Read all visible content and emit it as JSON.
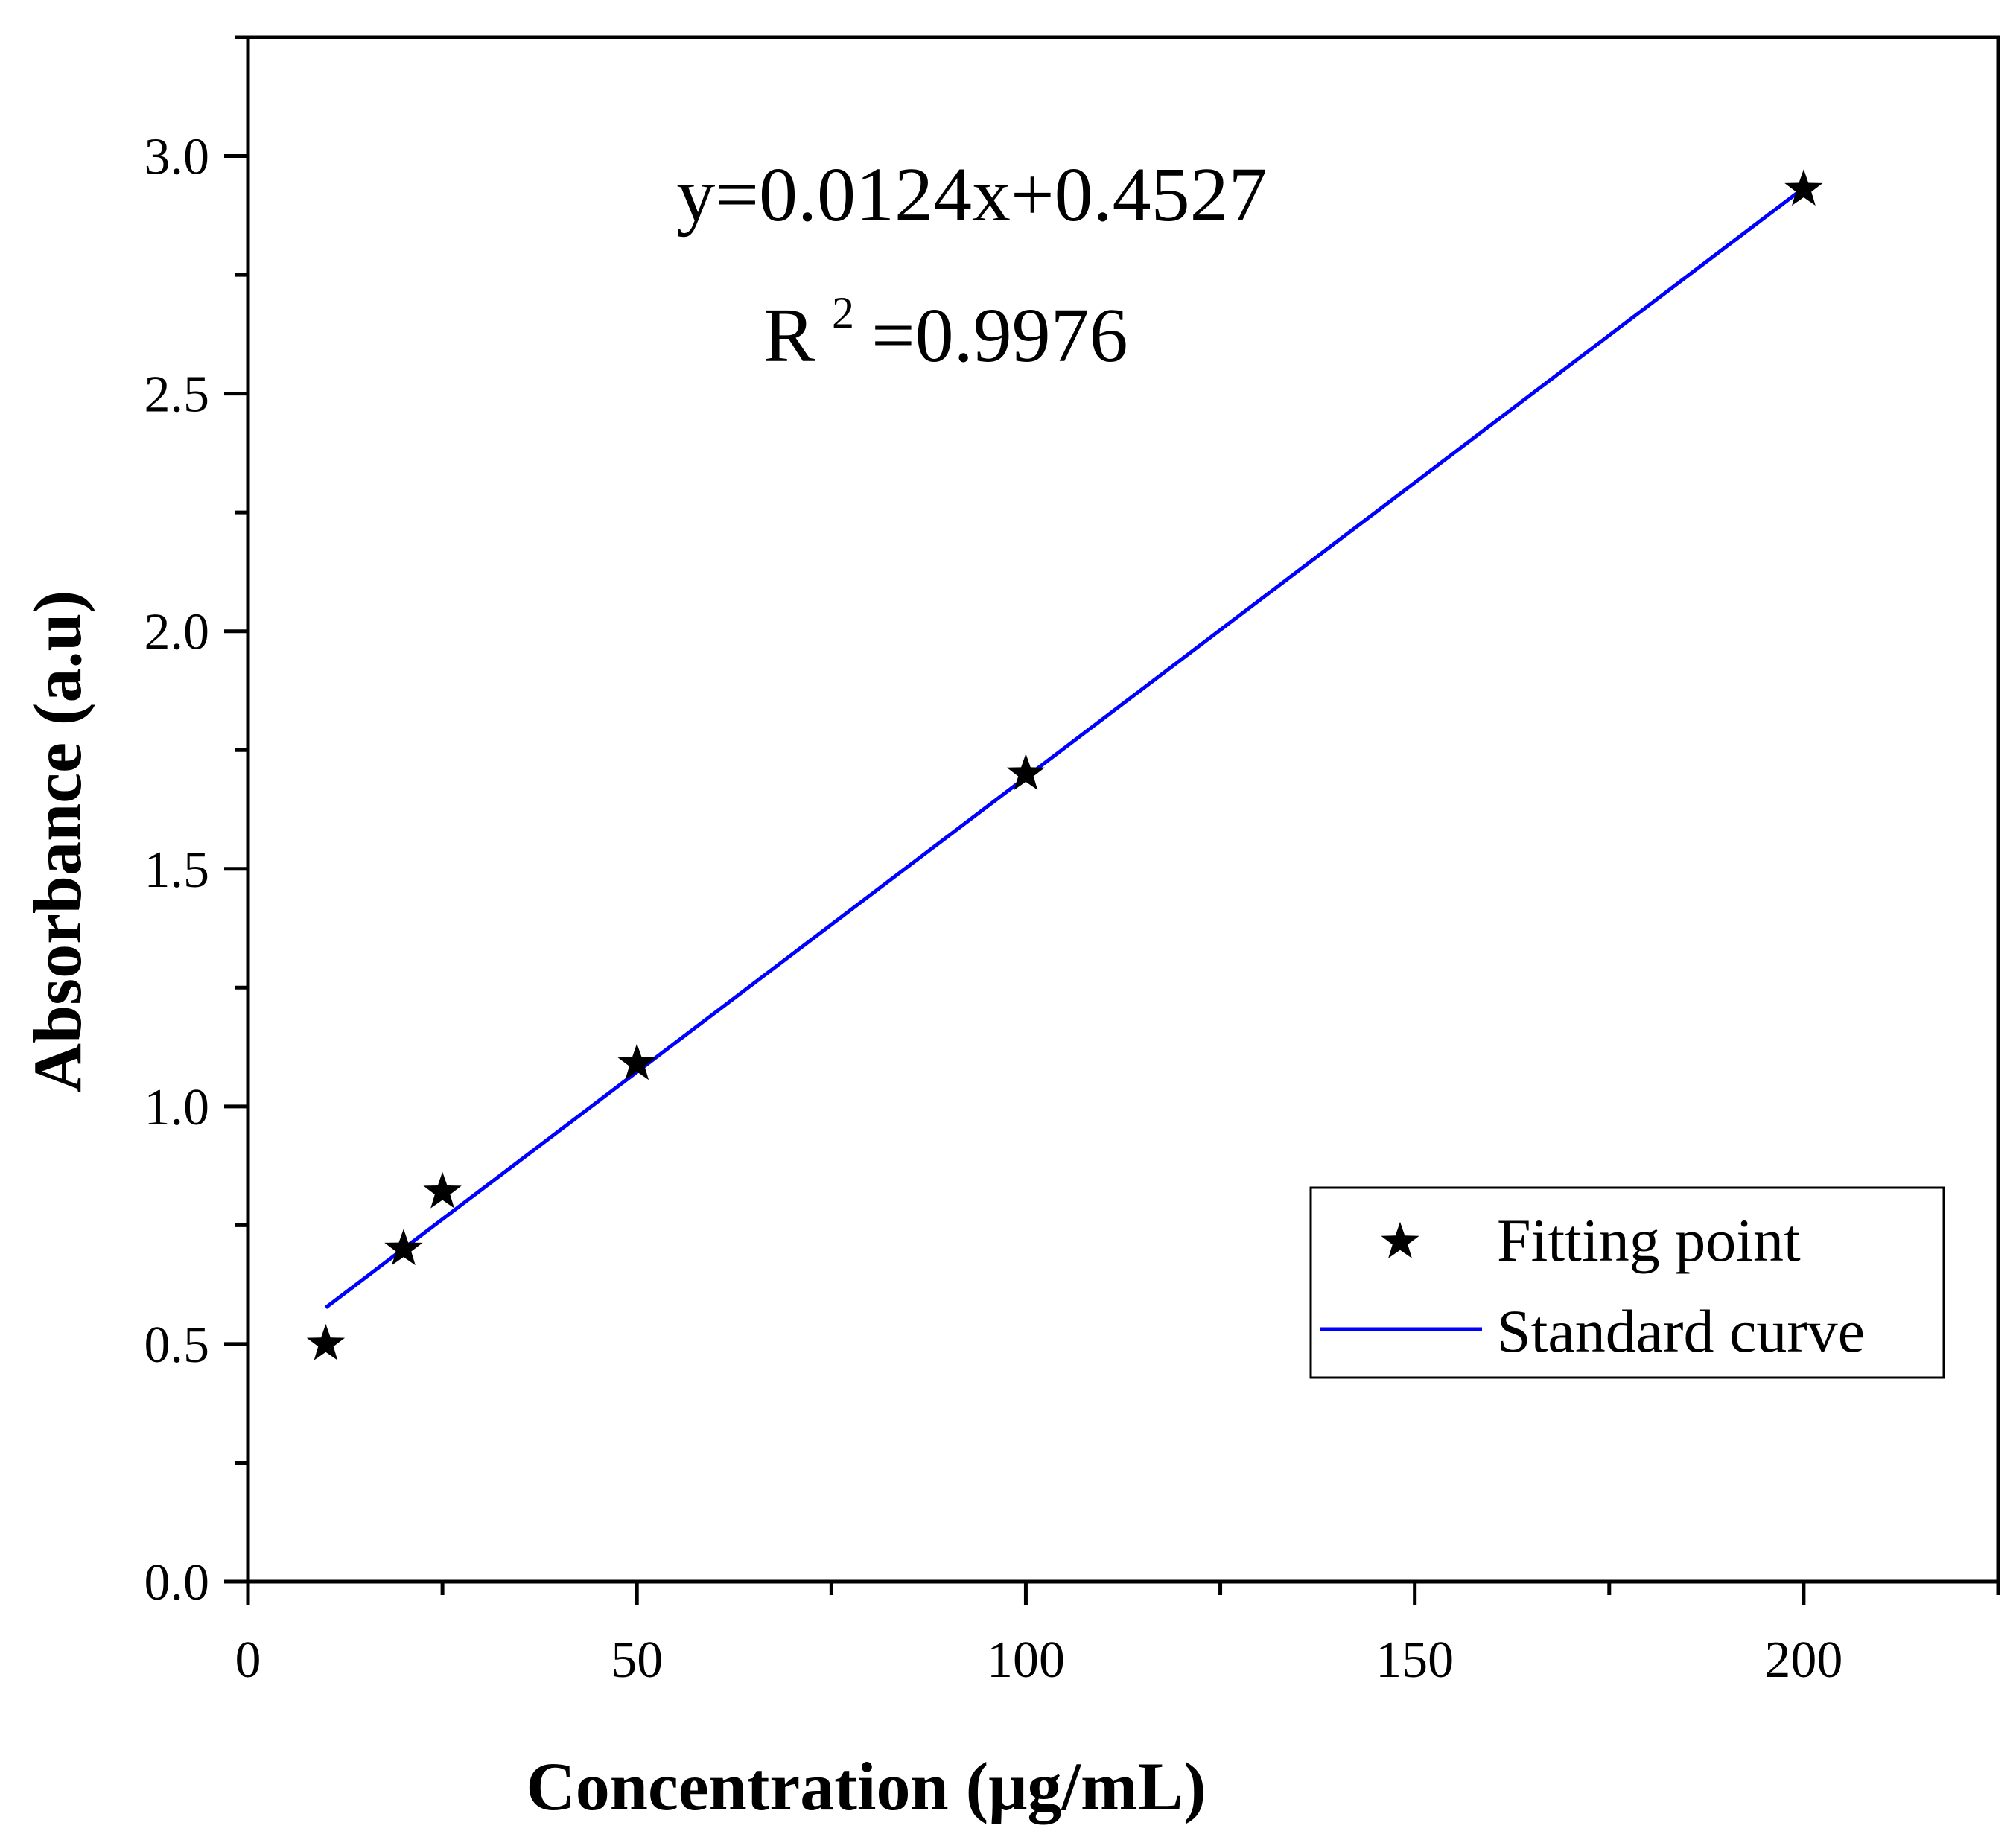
{
  "chart_data": {
    "type": "scatter",
    "title": "",
    "xlabel": "Concentration (μg/mL)",
    "ylabel": "Absorbance (a.u)",
    "xlim": [
      0,
      225
    ],
    "ylim": [
      0,
      3.25
    ],
    "x_ticks": [
      0,
      50,
      100,
      150,
      200
    ],
    "x_tick_labels": [
      "0",
      "50",
      "100",
      "150",
      "200"
    ],
    "x_minor_ticks": [
      25,
      75,
      125,
      175,
      225
    ],
    "y_ticks": [
      0,
      0.5,
      1.0,
      1.5,
      2.0,
      2.5,
      3.0
    ],
    "y_tick_labels": [
      "0.0",
      "0.5",
      "1.0",
      "1.5",
      "2.0",
      "2.5",
      "3.0"
    ],
    "y_minor_ticks": [
      0.25,
      0.75,
      1.25,
      1.75,
      2.25,
      2.75,
      3.25
    ],
    "grid": false,
    "series": [
      {
        "name": "Fitting point",
        "kind": "scatter",
        "marker": "star",
        "color": "#000000",
        "x": [
          10,
          20,
          25,
          50,
          100,
          200
        ],
        "y": [
          0.5,
          0.7,
          0.82,
          1.09,
          1.7,
          2.93
        ]
      },
      {
        "name": "Standard curve",
        "kind": "line",
        "color": "#0000ff",
        "slope": 0.0124,
        "intercept": 0.4527,
        "x_range": [
          10,
          200
        ]
      }
    ],
    "annotations": {
      "equation": "y=0.0124x+0.4527",
      "r_squared_prefix": "R",
      "r_squared_exponent": "2",
      "r_squared_value": "=0.9976"
    },
    "legend": {
      "position": "bottom-right",
      "entries": [
        "Fitting point",
        "Standard curve"
      ]
    }
  }
}
